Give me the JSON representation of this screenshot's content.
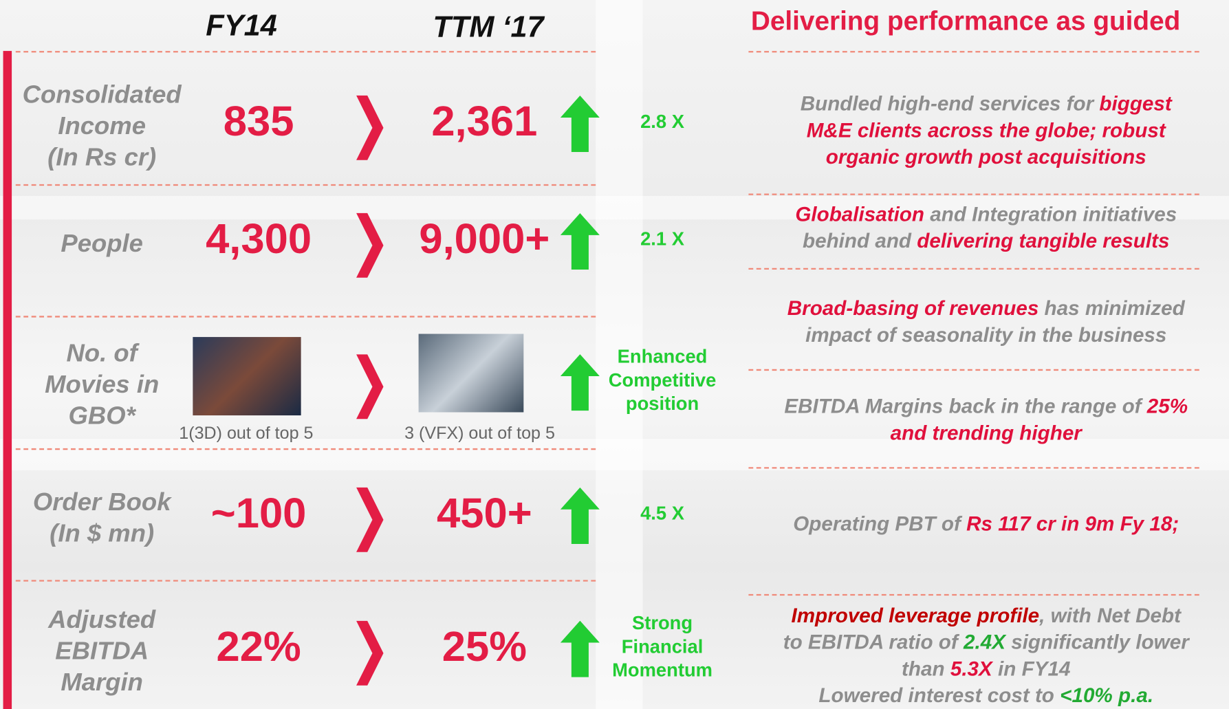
{
  "header": {
    "fy14": "FY14",
    "ttm": "TTM ‘17",
    "right_title": "Delivering performance as guided"
  },
  "rows": [
    {
      "label": [
        "Consolidated",
        "Income",
        "(In Rs cr)"
      ],
      "fy14": "835",
      "ttm": "2,361",
      "growth": [
        "2.8 X"
      ]
    },
    {
      "label": [
        "People"
      ],
      "fy14": "4,300",
      "ttm": "9,000+",
      "growth": [
        "2.1 X"
      ]
    },
    {
      "label": [
        "No. of",
        "Movies in",
        "GBO*"
      ],
      "fy14_caption": "1(3D) out of top 5",
      "ttm_caption": "3 (VFX) out of top 5",
      "growth": [
        "Enhanced",
        "Competitive",
        "position"
      ]
    },
    {
      "label": [
        "Order Book",
        "(In $ mn)"
      ],
      "fy14": "~100",
      "ttm": "450+",
      "growth": [
        "4.5 X"
      ]
    },
    {
      "label": [
        "Adjusted",
        "EBITDA",
        "Margin"
      ],
      "fy14": "22%",
      "ttm": "25%",
      "growth": [
        "Strong",
        "Financial",
        "Momentum"
      ]
    }
  ],
  "bullets": [
    [
      {
        "text": "Bundled high-end services for ",
        "tone": "gray"
      },
      {
        "text": "biggest\nM&E clients across the globe; robust\norganic growth post acquisitions",
        "tone": "red"
      }
    ],
    [
      {
        "text": "Globalisation",
        "tone": "red"
      },
      {
        "text": " and Integration initiatives\nbehind and ",
        "tone": "gray"
      },
      {
        "text": "delivering tangible results",
        "tone": "red"
      }
    ],
    [
      {
        "text": "Broad-basing of revenues",
        "tone": "red"
      },
      {
        "text": " has minimized\nimpact of seasonality in the business",
        "tone": "gray"
      }
    ],
    [
      {
        "text": "EBITDA Margins back in the range of ",
        "tone": "gray"
      },
      {
        "text": "25%\nand trending higher",
        "tone": "red"
      }
    ],
    [
      {
        "text": "Operating PBT of ",
        "tone": "gray"
      },
      {
        "text": "Rs 117 cr in 9m Fy 18;",
        "tone": "red"
      }
    ],
    [
      {
        "text": "Improved leverage profile",
        "tone": "dark"
      },
      {
        "text": ", with Net Debt\nto EBITDA ratio of ",
        "tone": "gray"
      },
      {
        "text": "2.4X",
        "tone": "green"
      },
      {
        "text": " significantly lower\nthan ",
        "tone": "gray"
      },
      {
        "text": "5.3X",
        "tone": "red"
      },
      {
        "text": " in FY14\nLowered interest cost to ",
        "tone": "gray"
      },
      {
        "text": "<10% p.a.",
        "tone": "green"
      }
    ]
  ]
}
